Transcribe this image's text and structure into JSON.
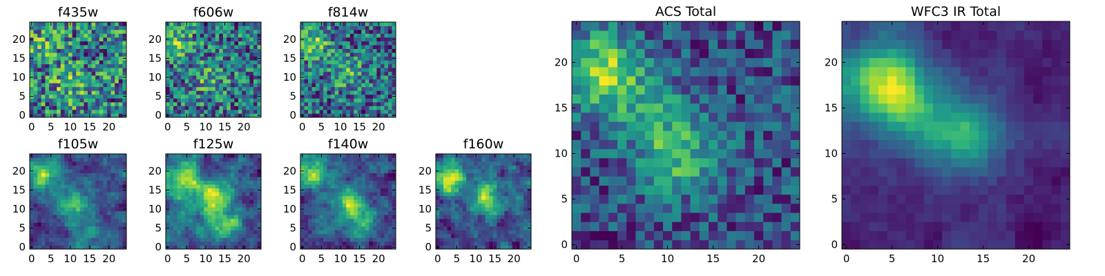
{
  "chart_data": [
    {
      "type": "heatmap",
      "title": "f435w",
      "xticks": [
        0,
        5,
        10,
        15,
        20
      ],
      "yticks": [
        0,
        5,
        10,
        15,
        20
      ],
      "xlim": [
        -0.5,
        24.5
      ],
      "ylim": [
        -0.5,
        24.5
      ],
      "grid_size": [
        25,
        25
      ],
      "colormap": "viridis",
      "seed": 11,
      "smooth": 0,
      "noise": 1.0,
      "blobs": [
        [
          10,
          8,
          0.6
        ],
        [
          3,
          18,
          0.4
        ]
      ],
      "bias": 0.62
    },
    {
      "type": "heatmap",
      "title": "f606w",
      "xticks": [
        0,
        5,
        10,
        15,
        20
      ],
      "yticks": [
        0,
        5,
        10,
        15,
        20
      ],
      "xlim": [
        -0.5,
        24.5
      ],
      "ylim": [
        -0.5,
        24.5
      ],
      "grid_size": [
        25,
        25
      ],
      "colormap": "viridis",
      "seed": 23,
      "smooth": 0,
      "noise": 1.0,
      "blobs": [
        [
          2,
          19,
          0.9
        ],
        [
          11,
          10,
          0.6
        ]
      ],
      "bias": 0.62
    },
    {
      "type": "heatmap",
      "title": "f814w",
      "xticks": [
        0,
        5,
        10,
        15,
        20
      ],
      "yticks": [
        0,
        5,
        10,
        15,
        20
      ],
      "xlim": [
        -0.5,
        24.5
      ],
      "ylim": [
        -0.5,
        24.5
      ],
      "grid_size": [
        25,
        25
      ],
      "colormap": "viridis",
      "seed": 37,
      "smooth": 0,
      "noise": 1.0,
      "blobs": [
        [
          3,
          19,
          1.2
        ],
        [
          12,
          11,
          0.8
        ]
      ],
      "bias": 0.55
    },
    {
      "type": "heatmap",
      "title": "f105w",
      "xticks": [
        0,
        5,
        10,
        15,
        20
      ],
      "yticks": [
        0,
        5,
        10,
        15,
        20
      ],
      "xlim": [
        -0.5,
        24.5
      ],
      "ylim": [
        -0.5,
        24.5
      ],
      "grid_size": [
        25,
        25
      ],
      "colormap": "viridis",
      "seed": 41,
      "smooth": 1,
      "noise": 0.8,
      "blobs": [
        [
          3,
          19,
          1.2
        ],
        [
          11,
          12,
          1.0
        ],
        [
          14,
          5,
          0.6
        ]
      ],
      "bias": 0.5
    },
    {
      "type": "heatmap",
      "title": "f125w",
      "xticks": [
        0,
        5,
        10,
        15,
        20
      ],
      "yticks": [
        0,
        5,
        10,
        15,
        20
      ],
      "xlim": [
        -0.5,
        24.5
      ],
      "ylim": [
        -0.5,
        24.5
      ],
      "grid_size": [
        25,
        25
      ],
      "colormap": "viridis",
      "seed": 53,
      "smooth": 1,
      "noise": 0.8,
      "blobs": [
        [
          4,
          18,
          1.0
        ],
        [
          12,
          13,
          1.1
        ],
        [
          14,
          6,
          0.7
        ]
      ],
      "bias": 0.52
    },
    {
      "type": "heatmap",
      "title": "f140w",
      "xticks": [
        0,
        5,
        10,
        15,
        20
      ],
      "yticks": [
        0,
        5,
        10,
        15,
        20
      ],
      "xlim": [
        -0.5,
        24.5
      ],
      "ylim": [
        -0.5,
        24.5
      ],
      "grid_size": [
        25,
        25
      ],
      "colormap": "viridis",
      "seed": 67,
      "smooth": 1,
      "noise": 0.8,
      "blobs": [
        [
          3,
          19,
          1.3
        ],
        [
          12,
          12,
          1.0
        ],
        [
          15,
          7,
          0.7
        ]
      ],
      "bias": 0.48
    },
    {
      "type": "heatmap",
      "title": "f160w",
      "xticks": [
        0,
        5,
        10,
        15,
        20
      ],
      "yticks": [
        0,
        5,
        10,
        15,
        20
      ],
      "xlim": [
        -0.5,
        24.5
      ],
      "ylim": [
        -0.5,
        24.5
      ],
      "grid_size": [
        25,
        25
      ],
      "colormap": "viridis",
      "seed": 79,
      "smooth": 1,
      "noise": 0.8,
      "blobs": [
        [
          3,
          18,
          1.2
        ],
        [
          13,
          13,
          1.1
        ]
      ],
      "bias": 0.45
    },
    {
      "type": "heatmap",
      "title": "ACS Total",
      "xticks": [
        0,
        5,
        10,
        15,
        20
      ],
      "yticks": [
        0,
        5,
        10,
        15,
        20
      ],
      "xlim": [
        -0.5,
        24.5
      ],
      "ylim": [
        -0.5,
        24.5
      ],
      "grid_size": [
        25,
        25
      ],
      "colormap": "viridis",
      "seed": 97,
      "smooth": 0,
      "noise": 0.55,
      "blobs": [
        [
          3,
          19,
          1.5
        ],
        [
          11,
          10,
          1.1
        ],
        [
          8,
          15,
          0.5
        ]
      ],
      "bias": 0.62
    },
    {
      "type": "heatmap",
      "title": "WFC3 IR Total",
      "xticks": [
        0,
        5,
        10,
        15,
        20
      ],
      "yticks": [
        0,
        5,
        10,
        15,
        20
      ],
      "xlim": [
        -0.5,
        24.5
      ],
      "ylim": [
        -0.5,
        24.5
      ],
      "grid_size": [
        25,
        25
      ],
      "colormap": "viridis",
      "seed": 131,
      "smooth": 2,
      "noise": 0.55,
      "blobs": [
        [
          4,
          18,
          2.0
        ],
        [
          13,
          12,
          1.6
        ],
        [
          7,
          15,
          0.8
        ]
      ],
      "bias": 0.38
    }
  ]
}
